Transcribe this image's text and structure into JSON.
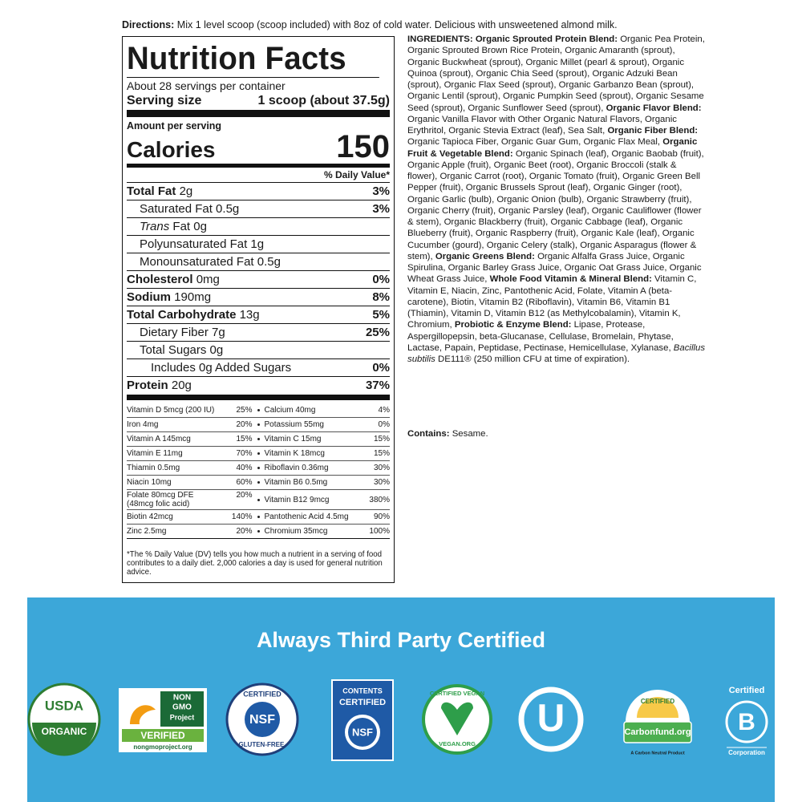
{
  "directions": {
    "label": "Directions:",
    "text": "Mix 1 level scoop (scoop included) with 8oz of cold water. Delicious with unsweetened almond milk."
  },
  "nutrition": {
    "title": "Nutrition Facts",
    "servings": "About 28 servings per container",
    "serving_size": {
      "label": "Serving size",
      "value": "1 scoop (about 37.5g)"
    },
    "amount_per_serving": "Amount per serving",
    "calories": {
      "label": "Calories",
      "value": 150
    },
    "daily_value_header": "% Daily Value*",
    "rows": [
      {
        "name": "Total Fat",
        "amount": "2g",
        "dv": "3%"
      },
      {
        "name": "Saturated Fat 0.5g",
        "dv": "3%"
      },
      {
        "italic": "Trans",
        "name": "Fat 0g"
      },
      {
        "name": "Polyunsaturated Fat 1g"
      },
      {
        "name": "Monounsaturated Fat 0.5g"
      },
      {
        "name": "Cholesterol",
        "amount": "0mg",
        "dv": "0%"
      },
      {
        "name": "Sodium",
        "amount": "190mg",
        "dv": "8%"
      },
      {
        "name": "Total Carbohydrate",
        "amount": "13g",
        "dv": "5%"
      },
      {
        "name": "Dietary Fiber 7g",
        "dv": "25%"
      },
      {
        "name": "Total Sugars 0g"
      },
      {
        "name": "Includes 0g Added Sugars",
        "dv": "0%"
      },
      {
        "name": "Protein",
        "amount": "20g",
        "dv": "37%"
      }
    ],
    "micronutrients": [
      [
        [
          "Vitamin D 5mcg (200 IU)",
          "25%"
        ],
        [
          "Calcium 40mg",
          "4%"
        ]
      ],
      [
        [
          "Iron 4mg",
          "20%"
        ],
        [
          "Potassium 55mg",
          "0%"
        ]
      ],
      [
        [
          "Vitamin A 145mcg",
          "15%"
        ],
        [
          "Vitamin C 15mg",
          "15%"
        ]
      ],
      [
        [
          "Vitamin E 11mg",
          "70%"
        ],
        [
          "Vitamin K 18mcg",
          "15%"
        ]
      ],
      [
        [
          "Thiamin 0.5mg",
          "40%"
        ],
        [
          "Riboflavin 0.36mg",
          "30%"
        ]
      ],
      [
        [
          "Niacin 10mg",
          "60%"
        ],
        [
          "Vitamin B6 0.5mg",
          "30%"
        ]
      ],
      [
        [
          "Folate 80mcg DFE (48mcg folic acid)",
          "20%"
        ],
        [
          "Vitamin B12 9mcg",
          "380%"
        ]
      ],
      [
        [
          "Biotin 42mcg",
          "140%"
        ],
        [
          "Pantothenic Acid 4.5mg",
          "90%"
        ]
      ],
      [
        [
          "Zinc 2.5mg",
          "20%"
        ],
        [
          "Chromium 35mcg",
          "100%"
        ]
      ]
    ],
    "footnote": "*The % Daily Value (DV) tells you how much a nutrient in a serving of food contributes to a daily diet. 2,000 calories a day is used for general nutrition advice."
  },
  "ingredients": [
    {
      "bold": "INGREDIENTS:"
    },
    {
      "bold": "Organic Sprouted Protein Blend:"
    },
    {
      "text": "Organic Pea Protein, Organic Sprouted Brown Rice Protein, Organic Amaranth (sprout), Organic Buckwheat (sprout), Organic Millet (pearl & sprout), Organic Quinoa (sprout), Organic Chia Seed (sprout), Organic Adzuki Bean (sprout), Organic Flax Seed (sprout), Organic Garbanzo Bean (sprout), Organic Lentil (sprout), Organic Pumpkin Seed (sprout), Organic Sesame Seed (sprout), Organic Sunflower Seed (sprout),"
    },
    {
      "bold": "Organic Flavor Blend:"
    },
    {
      "text": "Organic Vanilla Flavor with Other Organic Natural Flavors, Organic Erythritol, Organic Stevia Extract (leaf), Sea Salt,"
    },
    {
      "bold": "Organic Fiber Blend:"
    },
    {
      "text": "Organic Tapioca Fiber, Organic Guar Gum, Organic Flax Meal,"
    },
    {
      "bold": "Organic Fruit & Vegetable Blend:"
    },
    {
      "text": "Organic Spinach (leaf), Organic Baobab (fruit), Organic Apple (fruit), Organic Beet (root), Organic Broccoli (stalk & flower), Organic Carrot (root), Organic Tomato (fruit), Organic Green Bell Pepper (fruit), Organic Brussels Sprout (leaf), Organic Ginger (root), Organic Garlic (bulb), Organic Onion (bulb), Organic Strawberry (fruit), Organic Cherry (fruit), Organic Parsley (leaf), Organic Cauliflower (flower & stem), Organic Blackberry (fruit), Organic Cabbage (leaf), Organic Blueberry (fruit), Organic Raspberry (fruit), Organic Kale (leaf), Organic Cucumber (gourd), Organic Celery (stalk), Organic Asparagus (flower & stem),"
    },
    {
      "bold": "Organic Greens Blend:"
    },
    {
      "text": "Organic Alfalfa Grass Juice, Organic Spirulina, Organic Barley Grass Juice, Organic Oat Grass Juice, Organic Wheat Grass Juice,"
    },
    {
      "bold": "Whole Food Vitamin & Mineral Blend:"
    },
    {
      "text": "Vitamin C, Vitamin E, Niacin, Zinc, Pantothenic Acid, Folate, Vitamin A (beta-carotene), Biotin, Vitamin B2 (Riboflavin), Vitamin B6, Vitamin B1 (Thiamin), Vitamin D, Vitamin B12 (as Methylcobalamin), Vitamin K, Chromium,"
    },
    {
      "bold": "Probiotic & Enzyme Blend:"
    },
    {
      "text": "Lipase, Protease, Aspergillopepsin, beta-Glucanase, Cellulase, Bromelain, Phytase, Lactase, Papain, Peptidase, Pectinase, Hemicellulase, Xylanase,"
    },
    {
      "italic": "Bacillus subtilis"
    },
    {
      "text": "DE111® (250 million CFU at time of expiration)."
    }
  ],
  "contains": {
    "label": "Contains:",
    "text": "Sesame."
  },
  "certifications": {
    "title": "Always Third Party Certified",
    "usda": {
      "top": "USDA",
      "bottom": "ORGANIC"
    },
    "non_gmo": {
      "line1": "NON",
      "line2": "GMO",
      "line3": "Project",
      "badge": "VERIFIED",
      "url": "nongmoproject.org"
    },
    "nsf_gluten_free": {
      "top": "CERTIFIED",
      "center": "NSF",
      "bottom": "GLUTEN-FREE."
    },
    "nsf_contents": {
      "line1": "CONTENTS",
      "line2": "CERTIFIED",
      "center": "NSF"
    },
    "vegan": {
      "top": "CERTIFIED VEGAN",
      "bottom": "VEGAN.ORG"
    },
    "ou": {
      "center": "U"
    },
    "carbonfund": {
      "top": "CERTIFIED",
      "name": "Carbonfund.org",
      "tagline": "A Carbon Neutral Product"
    },
    "b_corp": {
      "top": "Certified",
      "center": "B",
      "bottom": "Corporation"
    }
  }
}
